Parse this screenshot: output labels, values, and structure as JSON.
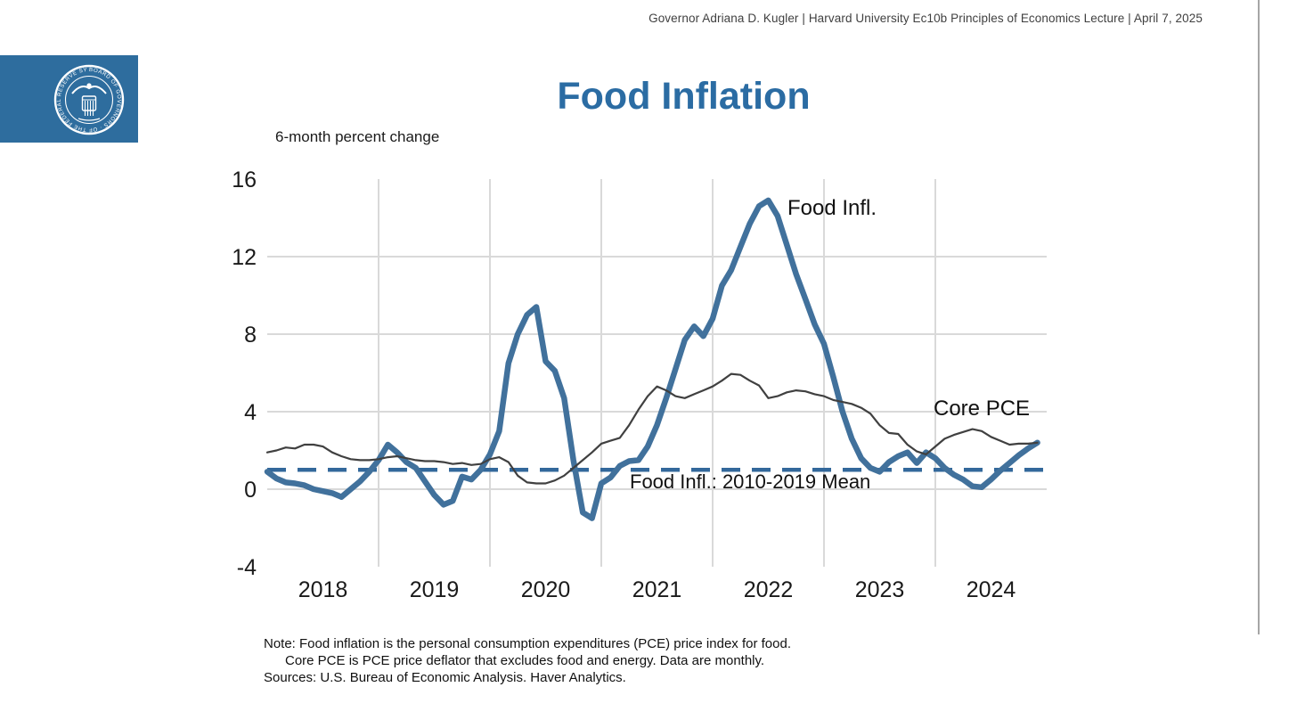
{
  "header": {
    "attribution": "Governor Adriana D. Kugler | Harvard University Ec10b Principles of Economics Lecture | April 7, 2025"
  },
  "logo": {
    "alt": "Board of Governors of the Federal Reserve System seal",
    "ring_text": "BOARD OF GOVERNORS OF THE FEDERAL RESERVE SYSTEM"
  },
  "title": "Food Inflation",
  "units_label": "6-month percent change",
  "notes": {
    "line1": "Note: Food inflation is the personal consumption expenditures (PCE) price index for food.",
    "line2": "Core PCE is PCE price deflator that excludes food and energy. Data are monthly.",
    "line3": "Sources: U.S. Bureau of Economic Analysis. Haver Analytics."
  },
  "colors": {
    "title_blue": "#2B6CA3",
    "logo_blue": "#2E6D9E",
    "food_line": "#41719C",
    "core_line": "#404040",
    "reference_line": "#33689B",
    "grid": "#D9D9D9",
    "text": "#1A1A1A",
    "header_text": "#404040",
    "edge_rule": "#A6A6A6"
  },
  "chart_data": {
    "type": "line",
    "title": "Food Inflation",
    "ylabel": "6-month percent change",
    "ylim": [
      -4,
      16
    ],
    "yticks": [
      16,
      12,
      8,
      4,
      0,
      -4
    ],
    "gridlines_y": [
      12,
      8,
      4,
      0
    ],
    "xlim": [
      2018,
      2025
    ],
    "gridlines_x": [
      2019,
      2020,
      2021,
      2022,
      2023,
      2024
    ],
    "xticks": [
      2018,
      2019,
      2020,
      2021,
      2022,
      2023,
      2024
    ],
    "frequency": "monthly",
    "x_start": 2018.0,
    "x_step": 0.083333,
    "legend": "inline-annotations",
    "series": [
      {
        "name": "Food Infl.",
        "color": "#41719C",
        "values": [
          0.9,
          0.55,
          0.35,
          0.3,
          0.2,
          0.0,
          -0.1,
          -0.2,
          -0.4,
          0.0,
          0.4,
          0.9,
          1.5,
          2.3,
          1.9,
          1.4,
          1.1,
          0.4,
          -0.3,
          -0.8,
          -0.6,
          0.65,
          0.5,
          1.0,
          1.8,
          3.0,
          6.5,
          8.0,
          9.0,
          9.4,
          6.6,
          6.1,
          4.7,
          1.5,
          -1.2,
          -1.5,
          0.3,
          0.6,
          1.2,
          1.45,
          1.5,
          2.2,
          3.3,
          4.7,
          6.2,
          7.7,
          8.4,
          7.9,
          8.8,
          10.5,
          11.3,
          12.5,
          13.7,
          14.6,
          14.9,
          14.1,
          12.6,
          11.1,
          9.8,
          8.5,
          7.5,
          5.8,
          4.0,
          2.6,
          1.6,
          1.1,
          0.9,
          1.4,
          1.7,
          1.9,
          1.35,
          1.9,
          1.6,
          1.1,
          0.75,
          0.5,
          0.15,
          0.1,
          0.5,
          0.95,
          1.35,
          1.75,
          2.1,
          2.4
        ]
      },
      {
        "name": "Core PCE",
        "color": "#404040",
        "values": [
          1.9,
          2.0,
          2.15,
          2.1,
          2.3,
          2.3,
          2.2,
          1.9,
          1.7,
          1.55,
          1.5,
          1.5,
          1.55,
          1.65,
          1.7,
          1.6,
          1.5,
          1.45,
          1.45,
          1.4,
          1.3,
          1.35,
          1.25,
          1.3,
          1.55,
          1.65,
          1.4,
          0.7,
          0.35,
          0.3,
          0.3,
          0.45,
          0.7,
          1.1,
          1.5,
          1.9,
          2.35,
          2.5,
          2.65,
          3.3,
          4.1,
          4.8,
          5.3,
          5.1,
          4.8,
          4.7,
          4.9,
          5.1,
          5.3,
          5.6,
          5.95,
          5.9,
          5.6,
          5.35,
          4.7,
          4.8,
          5.0,
          5.1,
          5.05,
          4.9,
          4.8,
          4.6,
          4.5,
          4.4,
          4.2,
          3.9,
          3.3,
          2.9,
          2.85,
          2.3,
          1.95,
          1.8,
          2.2,
          2.6,
          2.8,
          2.95,
          3.1,
          3.0,
          2.7,
          2.5,
          2.3,
          2.35,
          2.35,
          2.4
        ]
      }
    ],
    "reference_line": {
      "label": "Food Infl.: 2010-2019 Mean",
      "value": 1.0,
      "style": "dashed",
      "color": "#33689B"
    }
  }
}
